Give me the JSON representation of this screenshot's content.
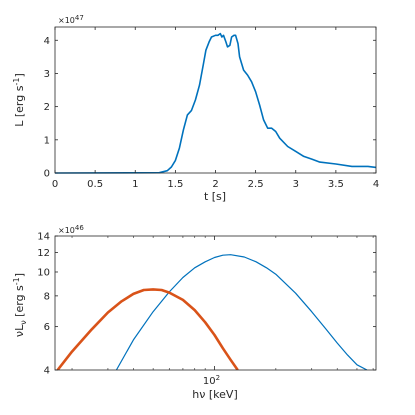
{
  "chart_data": [
    {
      "type": "line",
      "xlabel": "t [s]",
      "ylabel": "L [erg s",
      "ylabel_sup": "-1",
      "ylabel_end": "]",
      "exponent_base": "×10",
      "exponent_power": "47",
      "xlim": [
        0,
        4
      ],
      "ylim": [
        0,
        4.4
      ],
      "xticks": [
        0,
        0.5,
        1,
        1.5,
        2,
        2.5,
        3,
        3.5,
        4
      ],
      "xtick_labels": [
        "0",
        "0.5",
        "1",
        "1.5",
        "2",
        "2.5",
        "3",
        "3.5",
        "4"
      ],
      "yticks": [
        0,
        1,
        2,
        3,
        4
      ],
      "ytick_labels": [
        "0",
        "1",
        "2",
        "3",
        "4"
      ],
      "grid": false,
      "series": [
        {
          "color": "#0072BD",
          "x": [
            0,
            1.3,
            1.4,
            1.45,
            1.5,
            1.55,
            1.6,
            1.65,
            1.7,
            1.75,
            1.8,
            1.85,
            1.88,
            1.92,
            1.95,
            2.0,
            2.03,
            2.06,
            2.08,
            2.1,
            2.13,
            2.15,
            2.18,
            2.2,
            2.23,
            2.25,
            2.28,
            2.3,
            2.35,
            2.4,
            2.45,
            2.5,
            2.55,
            2.6,
            2.65,
            2.7,
            2.75,
            2.8,
            2.9,
            3.0,
            3.1,
            3.2,
            3.3,
            3.5,
            3.7,
            3.9,
            4.0
          ],
          "y": [
            0,
            0.01,
            0.07,
            0.18,
            0.38,
            0.75,
            1.3,
            1.75,
            1.88,
            2.2,
            2.65,
            3.3,
            3.7,
            3.95,
            4.1,
            4.15,
            4.15,
            4.2,
            4.1,
            4.15,
            3.95,
            3.8,
            3.85,
            4.1,
            4.15,
            4.15,
            3.9,
            3.5,
            3.1,
            2.95,
            2.75,
            2.45,
            2.05,
            1.6,
            1.35,
            1.35,
            1.25,
            1.05,
            0.8,
            0.65,
            0.5,
            0.42,
            0.33,
            0.27,
            0.2,
            0.2,
            0.17
          ]
        }
      ]
    },
    {
      "type": "line",
      "xlabel": "hν [keV]",
      "ylabel": "νL",
      "ylabel_sub": "ν",
      "ylabel_rest": " [erg s",
      "ylabel_sup": "-1",
      "ylabel_end": "]",
      "exponent_base": "×10",
      "exponent_power": "46",
      "x_scale": "log",
      "y_scale": "log",
      "xlim": [
        16.5,
        620
      ],
      "ylim": [
        4,
        14
      ],
      "xticks": [
        100
      ],
      "xtick_base": "10",
      "xtick_power": "2",
      "yticks": [
        4,
        6,
        8,
        10,
        12,
        14
      ],
      "ytick_labels": [
        "4",
        "6",
        "8",
        "10",
        "12",
        "14"
      ],
      "grid": false,
      "series": [
        {
          "color": "#0072BD",
          "x": [
            33,
            40,
            50,
            60,
            70,
            80,
            90,
            100,
            110,
            120,
            140,
            160,
            180,
            200,
            250,
            300,
            350,
            400,
            450,
            500,
            560
          ],
          "y": [
            4.0,
            5.3,
            6.9,
            8.3,
            9.5,
            10.4,
            11.0,
            11.45,
            11.7,
            11.75,
            11.5,
            11.0,
            10.4,
            9.8,
            8.2,
            6.9,
            5.9,
            5.15,
            4.6,
            4.2,
            4.0
          ]
        },
        {
          "color": "#D95319",
          "x": [
            17,
            20,
            25,
            30,
            35,
            40,
            45,
            50,
            55,
            60,
            70,
            80,
            90,
            100,
            110,
            120,
            130
          ],
          "y": [
            4.0,
            4.75,
            5.85,
            6.85,
            7.6,
            8.15,
            8.45,
            8.5,
            8.45,
            8.25,
            7.7,
            7.0,
            6.25,
            5.55,
            4.9,
            4.4,
            4.0
          ]
        }
      ]
    }
  ]
}
